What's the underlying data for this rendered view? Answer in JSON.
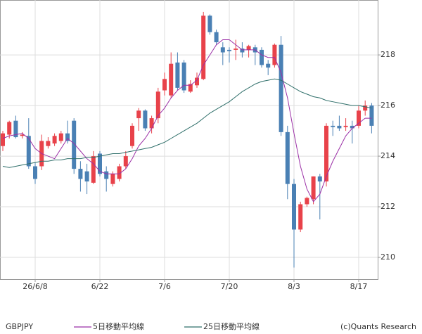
{
  "chart_data": {
    "type": "candlestick",
    "symbol": "GBPJPY",
    "credit": "(c)Quants Research",
    "categories": [
      null,
      null,
      null,
      null,
      null,
      "26/6/8",
      null,
      null,
      null,
      null,
      null,
      null,
      null,
      null,
      null,
      "6/22",
      null,
      null,
      null,
      null,
      null,
      null,
      null,
      null,
      null,
      "7/6",
      null,
      null,
      null,
      null,
      null,
      null,
      null,
      null,
      null,
      "7/20",
      null,
      null,
      null,
      null,
      null,
      null,
      null,
      null,
      null,
      "8/3",
      null,
      null,
      null,
      null,
      null,
      null,
      null,
      null,
      null,
      "8/17",
      null,
      null
    ],
    "open": [
      214.4,
      214.85,
      215.4,
      214.8,
      214.8,
      213.6,
      213.6,
      214.4,
      214.5,
      214.6,
      214.9,
      215.4,
      213.5,
      213.4,
      212.95,
      214.1,
      213.4,
      212.9,
      213.1,
      213.6,
      214.4,
      215.5,
      215.8,
      215.1,
      215.5,
      216.6,
      216.4,
      217.7,
      217.7,
      216.55,
      216.8,
      217.05,
      219.55,
      218.9,
      218.3,
      218.2,
      218.2,
      218.25,
      218.2,
      218.3,
      218.2,
      217.65,
      217.6,
      218.4,
      214.95,
      212.9,
      211.1,
      212.1,
      212.3,
      213.2,
      213.0,
      215.2,
      215.2,
      215.15,
      215.2,
      215.2,
      215.8,
      216.0
    ],
    "high": [
      215.0,
      215.4,
      215.6,
      214.95,
      215.5,
      213.75,
      214.85,
      214.75,
      214.9,
      215.0,
      215.4,
      215.5,
      213.8,
      213.7,
      214.2,
      214.2,
      213.6,
      213.4,
      213.7,
      214.2,
      215.3,
      215.9,
      215.85,
      215.6,
      216.7,
      217.3,
      218.1,
      218.1,
      217.8,
      217.0,
      217.3,
      219.7,
      219.6,
      219.0,
      218.5,
      218.3,
      218.6,
      218.5,
      218.4,
      218.4,
      218.3,
      217.8,
      218.45,
      218.75,
      215.2,
      213.1,
      212.2,
      212.4,
      213.2,
      213.3,
      215.3,
      215.4,
      215.6,
      215.5,
      215.4,
      216.0,
      216.2,
      216.1
    ],
    "low": [
      214.2,
      214.7,
      214.7,
      214.7,
      213.5,
      212.9,
      213.45,
      214.3,
      214.4,
      214.5,
      214.5,
      213.3,
      212.6,
      212.5,
      212.9,
      213.2,
      212.6,
      212.8,
      213.0,
      213.5,
      214.3,
      215.0,
      215.0,
      214.9,
      215.3,
      216.4,
      216.3,
      216.6,
      216.5,
      216.5,
      216.7,
      217.0,
      218.8,
      218.4,
      217.6,
      217.7,
      217.8,
      217.9,
      217.9,
      217.6,
      217.5,
      217.2,
      217.5,
      214.8,
      212.3,
      209.6,
      211.0,
      212.0,
      212.1,
      211.5,
      212.8,
      214.8,
      215.0,
      215.0,
      214.5,
      215.1,
      215.6,
      214.9
    ],
    "close": [
      214.9,
      215.35,
      214.75,
      214.85,
      213.6,
      213.1,
      214.6,
      214.6,
      214.8,
      214.9,
      214.6,
      213.5,
      213.1,
      213.0,
      214.0,
      213.3,
      213.1,
      213.3,
      213.6,
      214.0,
      215.2,
      215.8,
      215.1,
      215.5,
      216.55,
      217.05,
      217.65,
      216.7,
      216.6,
      216.85,
      217.1,
      219.55,
      218.9,
      218.5,
      218.1,
      218.15,
      218.25,
      218.1,
      218.35,
      218.1,
      217.6,
      217.5,
      218.4,
      214.95,
      212.9,
      211.1,
      212.1,
      212.35,
      213.2,
      213.0,
      215.2,
      215.15,
      215.1,
      215.2,
      215.1,
      215.8,
      216.0,
      215.2
    ],
    "up_color": "#e8424a",
    "down_color": "#4a80b4",
    "series": [
      {
        "name": "5日移動平均線",
        "color": "#9b2fa6",
        "values": [
          214.7,
          214.8,
          214.85,
          214.9,
          214.7,
          214.3,
          214.1,
          214.0,
          213.9,
          214.3,
          214.7,
          214.5,
          214.2,
          213.9,
          213.7,
          213.4,
          213.3,
          213.3,
          213.3,
          213.5,
          213.9,
          214.4,
          214.7,
          215.1,
          215.6,
          215.9,
          216.3,
          216.6,
          216.8,
          216.8,
          217.0,
          217.6,
          218.0,
          218.4,
          218.6,
          218.6,
          218.4,
          218.2,
          218.2,
          218.2,
          218.0,
          217.9,
          217.9,
          217.3,
          216.3,
          214.9,
          213.6,
          212.7,
          212.2,
          212.5,
          213.2,
          213.8,
          214.3,
          214.8,
          215.1,
          215.3,
          215.5,
          215.5
        ]
      },
      {
        "name": "25日移動平均線",
        "color": "#2f6f6a",
        "values": [
          213.6,
          213.55,
          213.6,
          213.65,
          213.7,
          213.75,
          213.8,
          213.8,
          213.85,
          213.85,
          213.9,
          213.9,
          213.9,
          213.95,
          213.95,
          214.0,
          214.05,
          214.1,
          214.1,
          214.15,
          214.2,
          214.25,
          214.3,
          214.35,
          214.45,
          214.55,
          214.7,
          214.85,
          215.0,
          215.15,
          215.3,
          215.5,
          215.7,
          215.85,
          216.0,
          216.15,
          216.35,
          216.55,
          216.7,
          216.85,
          216.95,
          217.0,
          217.05,
          217.0,
          216.85,
          216.7,
          216.55,
          216.45,
          216.35,
          216.3,
          216.2,
          216.15,
          216.1,
          216.05,
          216.0,
          216.0,
          215.95,
          215.9
        ]
      }
    ],
    "ylim": [
      209.14,
      220.17
    ],
    "yticks": [
      210,
      212,
      214,
      216,
      218
    ],
    "grid": true
  }
}
